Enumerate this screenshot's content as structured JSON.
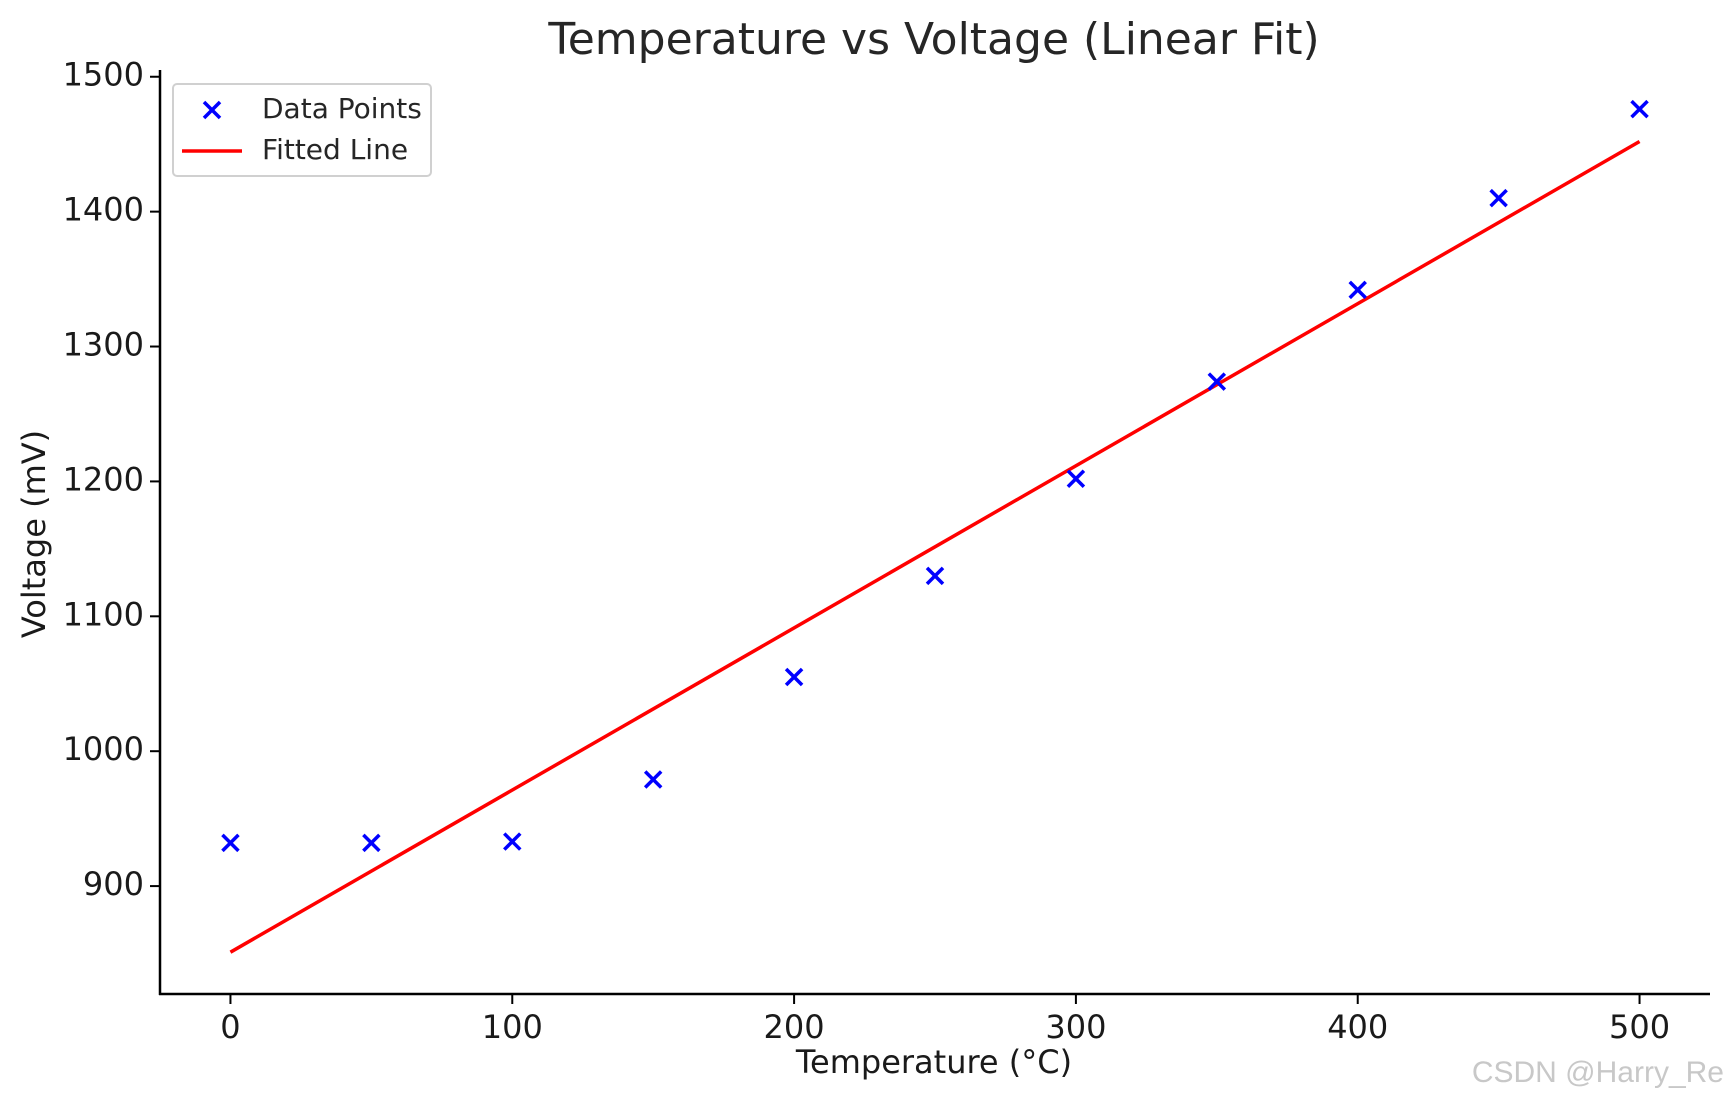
{
  "chart_data": {
    "type": "scatter",
    "title": "Temperature vs Voltage (Linear Fit)",
    "xlabel": "Temperature (°C)",
    "ylabel": "Voltage (mV)",
    "xlim": [
      -25,
      525
    ],
    "ylim": [
      820,
      1505
    ],
    "xticks": [
      0,
      100,
      200,
      300,
      400,
      500
    ],
    "yticks": [
      900,
      1000,
      1100,
      1200,
      1300,
      1400,
      1500
    ],
    "grid": false,
    "legend_position": "top-left",
    "series": [
      {
        "name": "Data Points",
        "kind": "scatter",
        "marker": "x",
        "color": "#0000ff",
        "x": [
          0,
          50,
          100,
          150,
          200,
          250,
          300,
          350,
          400,
          450,
          500
        ],
        "y": [
          932,
          932,
          933,
          979,
          1055,
          1130,
          1202,
          1274,
          1342,
          1410,
          1476
        ]
      },
      {
        "name": "Fitted Line",
        "kind": "line",
        "color": "#ff0000",
        "x": [
          0,
          500
        ],
        "y": [
          851,
          1452
        ]
      }
    ]
  },
  "watermark": "CSDN @Harry_Re"
}
